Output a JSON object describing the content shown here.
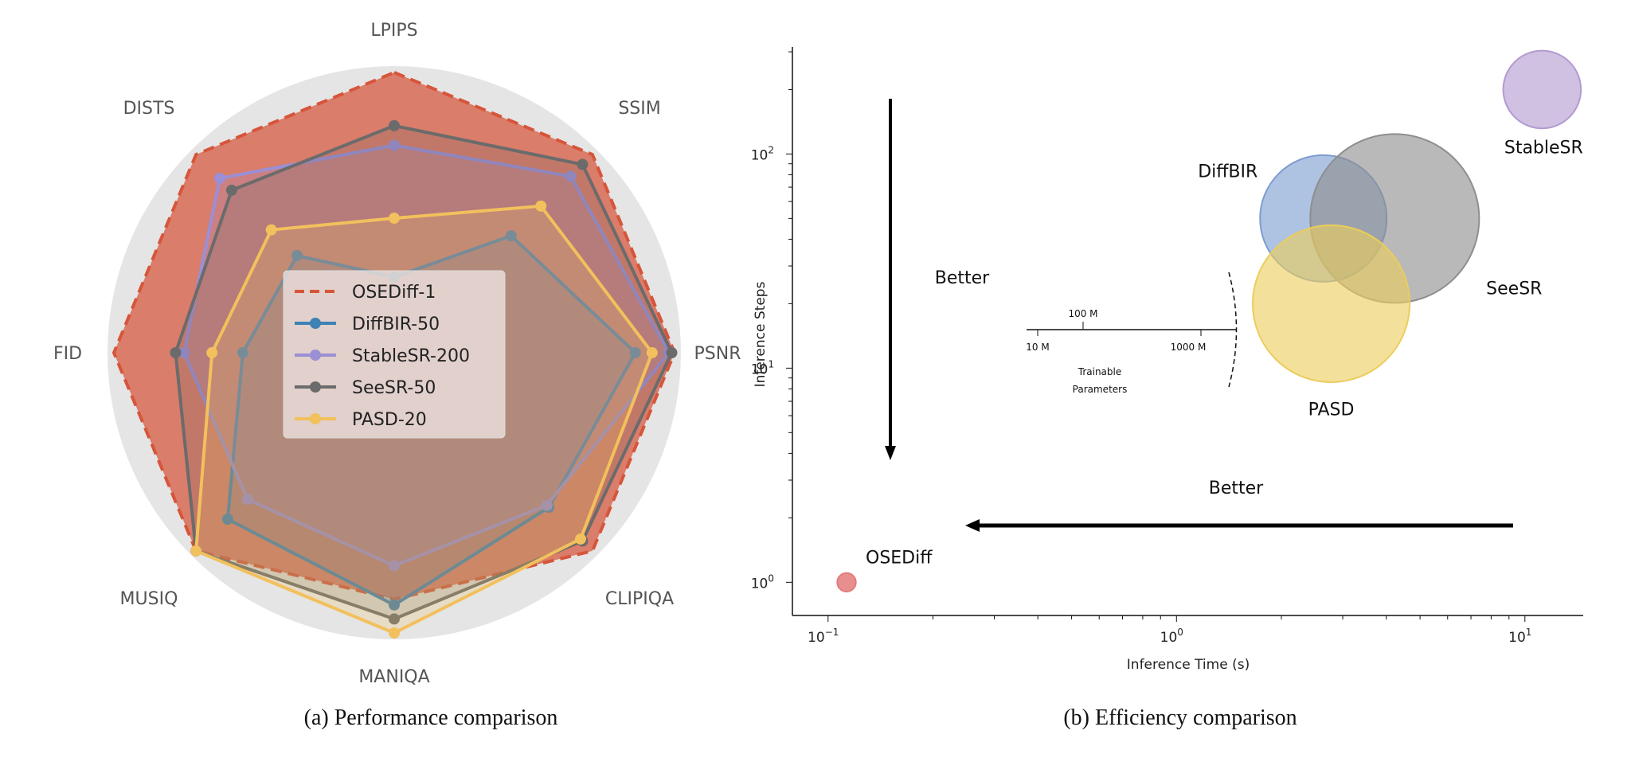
{
  "captions": {
    "a": "(a) Performance comparison",
    "b": "(b) Efficiency comparison"
  },
  "chart_data": [
    {
      "type": "radar",
      "axes": [
        "LPIPS",
        "SSIM",
        "PSNR",
        "CLIPIQA",
        "MANIQA",
        "MUSIQ",
        "FID",
        "DISTS"
      ],
      "range": [
        0,
        1
      ],
      "legend_position": "center",
      "series": [
        {
          "name": "OSEDiff-1",
          "color": "#d6553a",
          "style": "dashed",
          "values": [
            1.0,
            1.0,
            1.0,
            1.0,
            0.88,
            1.0,
            1.0,
            1.0
          ]
        },
        {
          "name": "DiffBIR-50",
          "color": "#3e82b5",
          "values": [
            0.27,
            0.59,
            0.86,
            0.78,
            0.9,
            0.84,
            0.54,
            0.49
          ]
        },
        {
          "name": "StableSR-200",
          "color": "#9b8fd6",
          "values": [
            0.74,
            0.89,
            0.98,
            0.77,
            0.76,
            0.74,
            0.75,
            0.88
          ]
        },
        {
          "name": "SeeSR-50",
          "color": "#6b6b6b",
          "values": [
            0.81,
            0.95,
            0.99,
            0.95,
            0.95,
            1.0,
            0.78,
            0.82
          ]
        },
        {
          "name": "PASD-20",
          "color": "#f2c05c",
          "values": [
            0.48,
            0.74,
            0.92,
            0.94,
            1.0,
            1.0,
            0.65,
            0.62
          ]
        }
      ]
    },
    {
      "type": "scatter",
      "xlabel": "Inference Time (s)",
      "ylabel": "Inference Steps",
      "xscale": "log",
      "yscale": "log",
      "xlim": [
        0.079,
        14.7
      ],
      "ylim": [
        0.7,
        316
      ],
      "xticks": [
        {
          "v": 0.1,
          "b": "10",
          "e": "−1"
        },
        {
          "v": 1,
          "b": "10",
          "e": "0"
        },
        {
          "v": 10,
          "b": "10",
          "e": "1"
        }
      ],
      "yticks": [
        {
          "v": 1,
          "b": "10",
          "e": "0"
        },
        {
          "v": 10,
          "b": "10",
          "e": "1"
        },
        {
          "v": 100,
          "b": "10",
          "e": "2"
        }
      ],
      "size_meaning": "Trainable Parameters",
      "points": [
        {
          "name": "OSEDiff",
          "x": 0.113,
          "y": 1,
          "size": 0.11,
          "color": "#e37b7b"
        },
        {
          "name": "StableSR",
          "x": 11.2,
          "y": 200,
          "size": 0.46,
          "color": "#b39ad0"
        },
        {
          "name": "DiffBIR",
          "x": 2.64,
          "y": 50,
          "size": 0.75,
          "color": "#7d9dd0"
        },
        {
          "name": "SeeSR",
          "x": 4.23,
          "y": 50,
          "size": 1.0,
          "color": "#8e8e8e"
        },
        {
          "name": "PASD",
          "x": 2.78,
          "y": 20,
          "size": 0.93,
          "color": "#ebcd5c"
        }
      ],
      "annotations": {
        "better_vertical": "Better",
        "better_horizontal": "Better"
      },
      "size_legend": {
        "title_line1": "Trainable",
        "title_line2": "Parameters",
        "ticks": [
          "10 M",
          "100 M",
          "1000 M"
        ]
      }
    }
  ]
}
